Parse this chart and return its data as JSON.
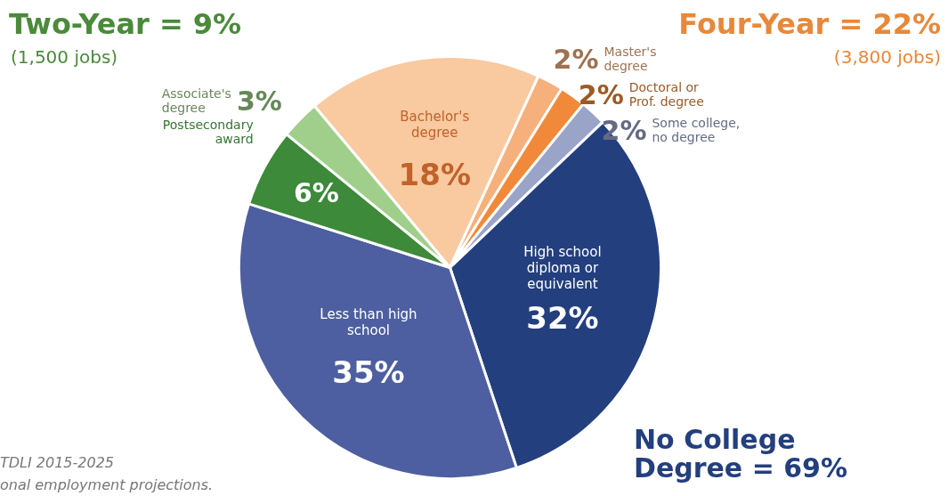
{
  "chart_data": {
    "type": "pie",
    "categories": [
      "Bachelor's degree",
      "Master's degree",
      "Doctoral or Prof. degree",
      "Some college, no degree",
      "High school diploma or equivalent",
      "Less than high school",
      "Postsecondary award",
      "Associate's degree"
    ],
    "values": [
      18,
      2,
      2,
      2,
      32,
      35,
      6,
      3
    ],
    "colors": [
      "#f9c9a0",
      "#f5b07c",
      "#f08a3a",
      "#9aa3c8",
      "#233f7e",
      "#4d5fa0",
      "#3d8a3a",
      "#9fcf8a"
    ],
    "value_labels": [
      "18%",
      "2%",
      "2%",
      "2%",
      "32%",
      "35%",
      "6%",
      "3%"
    ],
    "legend": false,
    "annotations": [
      "Two-Year = 9%",
      "(1,500 jobs)",
      "Four-Year = 22%",
      "(3,800 jobs)",
      "No College Degree = 69%",
      "TDLI 2015-2025",
      "onal employment projections."
    ]
  }
}
